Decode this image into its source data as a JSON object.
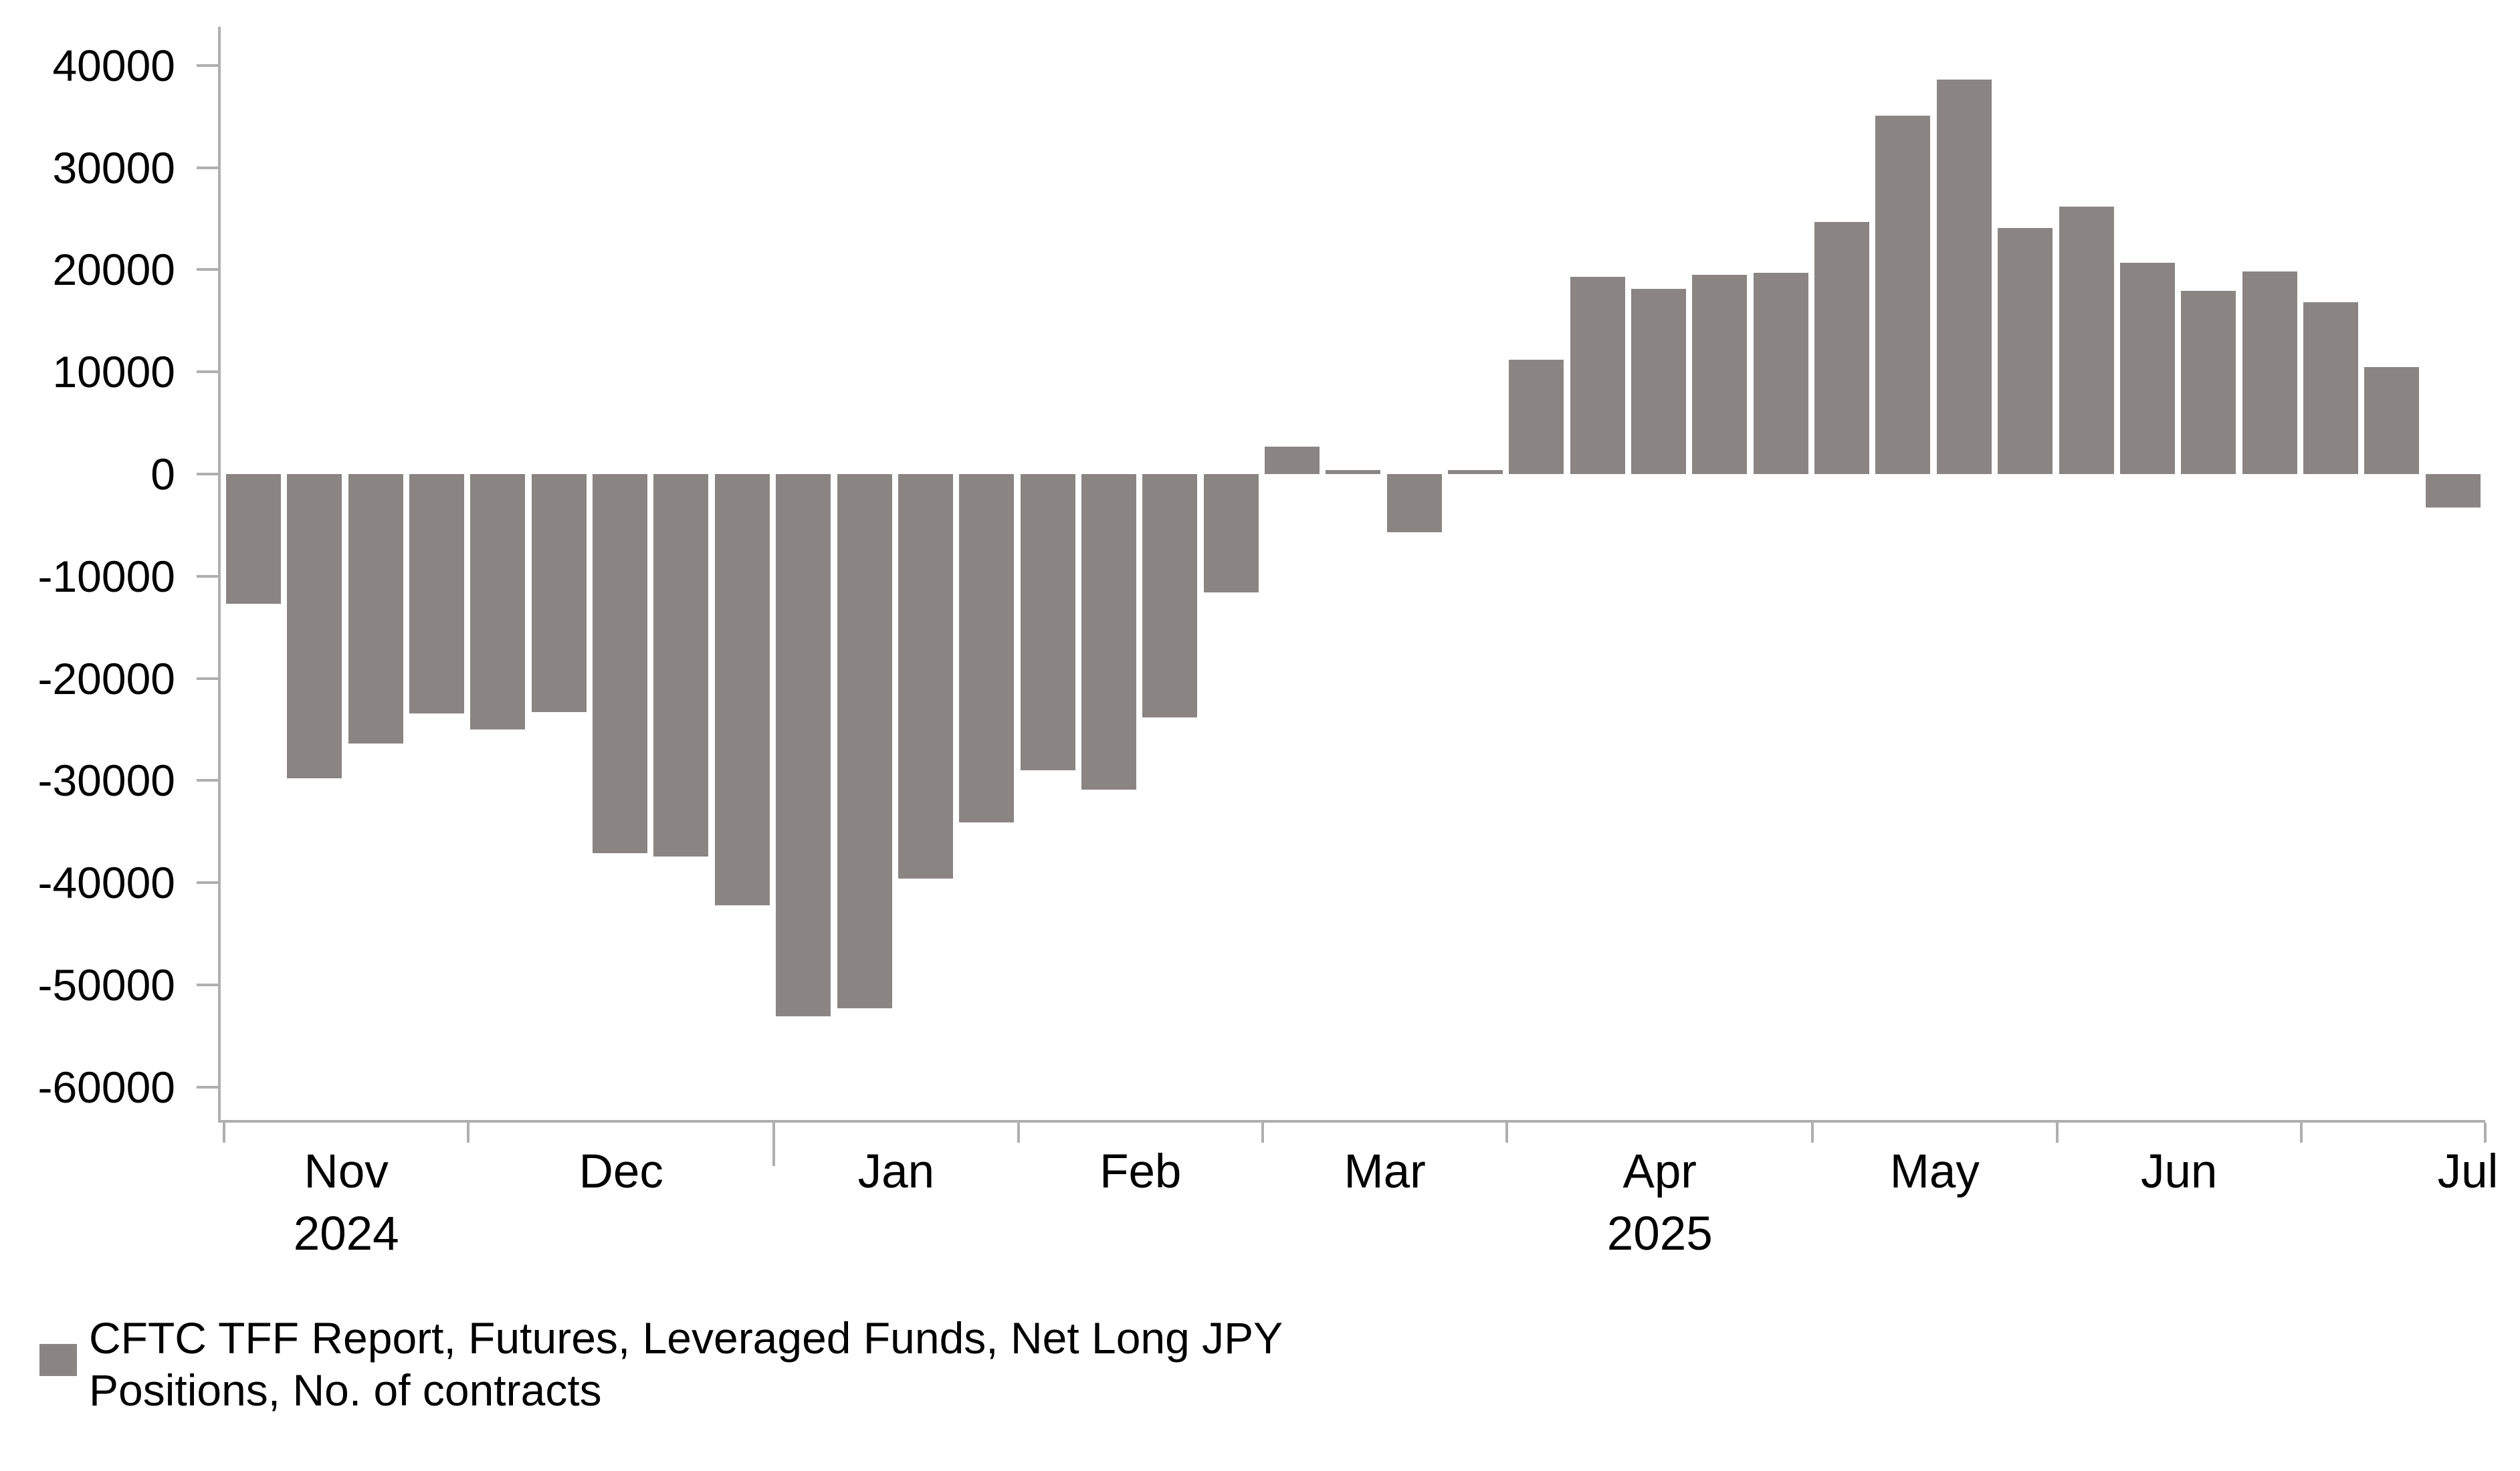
{
  "chart_data": {
    "type": "bar",
    "title": "",
    "frequency": "weekly",
    "values": [
      -12700,
      -29800,
      -26400,
      -23400,
      -25000,
      -23300,
      -37100,
      -37400,
      -42200,
      -53100,
      -52300,
      -39600,
      -34100,
      -29000,
      -30900,
      -23800,
      -11600,
      2700,
      400,
      -5700,
      400,
      11200,
      19300,
      18100,
      19500,
      19700,
      24700,
      35100,
      38600,
      24100,
      26200,
      20700,
      17900,
      19800,
      16800,
      10500,
      -3300
    ],
    "y_ticks": [
      40000,
      30000,
      20000,
      10000,
      0,
      -10000,
      -20000,
      -30000,
      -40000,
      -50000,
      -60000
    ],
    "ylim": [
      -63200,
      43800
    ],
    "grid": false,
    "x_months": [
      {
        "label": "Nov",
        "weeks": 4,
        "year": "2024"
      },
      {
        "label": "Dec",
        "weeks": 5
      },
      {
        "label": "Jan",
        "weeks": 4,
        "long_tick": true
      },
      {
        "label": "Feb",
        "weeks": 4
      },
      {
        "label": "Mar",
        "weeks": 4
      },
      {
        "label": "Apr",
        "weeks": 5,
        "year": "2025"
      },
      {
        "label": "May",
        "weeks": 4
      },
      {
        "label": "Jun",
        "weeks": 4
      },
      {
        "label": "Jul",
        "weeks": 3,
        "label_at_end": true
      }
    ],
    "legend_lines": [
      "CFTC TFF Report, Futures, Leveraged Funds, Net Long JPY",
      "Positions, No. of contracts"
    ],
    "legend_position": "bottom-left",
    "bar_color": "#8a8583",
    "axis_color": "#b0afaf",
    "text_color": "#000000"
  }
}
